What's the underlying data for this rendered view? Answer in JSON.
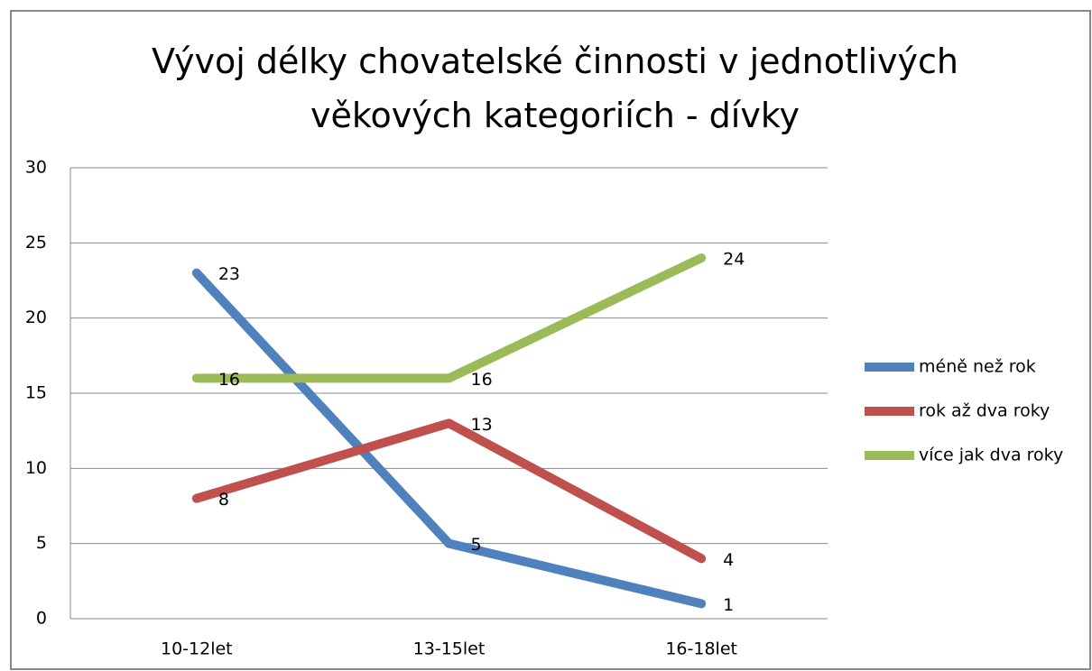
{
  "chart_data": {
    "type": "line",
    "title": "Vývoj délky chovatelské činnosti v jednotlivých věkových kategoriích - dívky",
    "categories": [
      "10-12let",
      "13-15let",
      "16-18let"
    ],
    "series": [
      {
        "name": "méně než rok",
        "color": "#4f81bd",
        "values": [
          23,
          5,
          1
        ]
      },
      {
        "name": "rok až dva roky",
        "color": "#c0504d",
        "values": [
          8,
          13,
          4
        ]
      },
      {
        "name": "více jak dva roky",
        "color": "#9bbb59",
        "values": [
          16,
          16,
          24
        ]
      }
    ],
    "ylim": [
      0,
      30
    ],
    "yticks": [
      0,
      5,
      10,
      15,
      20,
      25,
      30
    ],
    "grid": true,
    "legend": "right"
  }
}
